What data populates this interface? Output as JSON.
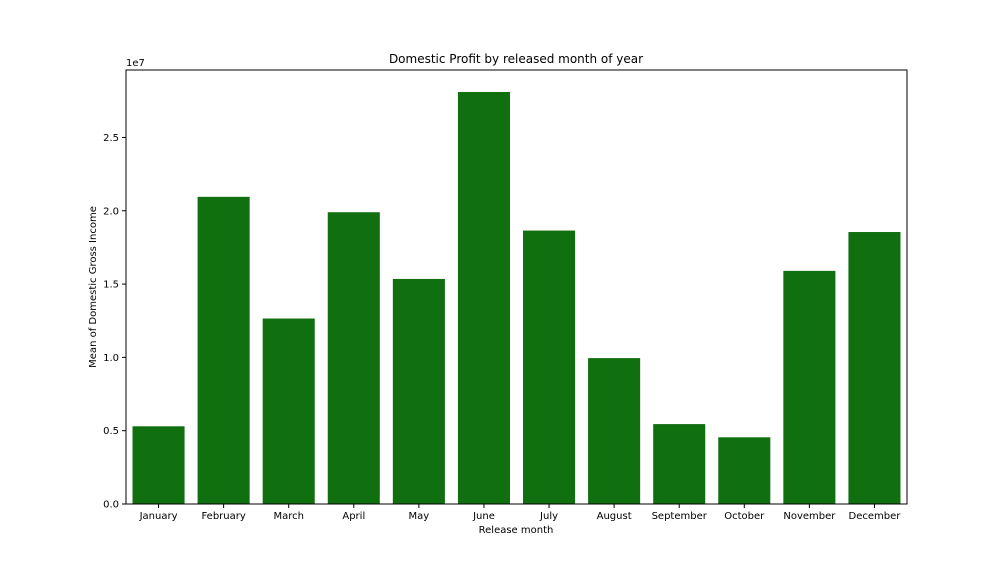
{
  "chart_data": {
    "type": "bar",
    "title": "Domestic Profit by released month of year",
    "xlabel": "Release month",
    "ylabel": "Mean of Domestic Gross Income",
    "offset_text": "1e7",
    "scale": 10000000,
    "categories": [
      "January",
      "February",
      "March",
      "April",
      "May",
      "June",
      "July",
      "August",
      "September",
      "October",
      "November",
      "December"
    ],
    "values": [
      5300000,
      20950000,
      12650000,
      19900000,
      15350000,
      28100000,
      18650000,
      9950000,
      5450000,
      4550000,
      15900000,
      18550000
    ],
    "ylim": [
      0,
      29600000
    ],
    "yticks": [
      0,
      5000000,
      10000000,
      15000000,
      20000000,
      25000000
    ],
    "ytick_labels": [
      "0.0",
      "0.5",
      "1.0",
      "1.5",
      "2.0",
      "2.5"
    ],
    "bar_color": "#107010",
    "grid": false,
    "legend": "none"
  }
}
